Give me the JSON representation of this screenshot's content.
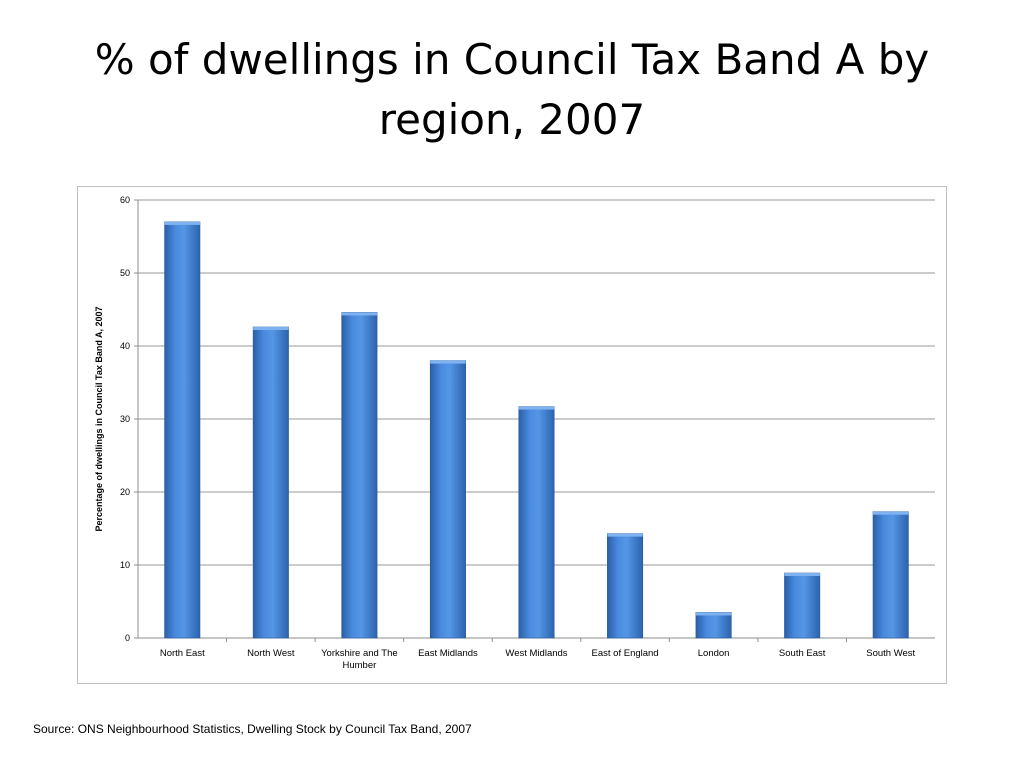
{
  "title": "% of dwellings in Council Tax Band A by region, 2007",
  "source": "Source: ONS Neighbourhood Statistics, Dwelling Stock by Council Tax Band, 2007",
  "chart_data": {
    "type": "bar",
    "categories": [
      "North East",
      "North West",
      "Yorkshire and The Humber",
      "East Midlands",
      "West Midlands",
      "East of England",
      "London",
      "South East",
      "South West"
    ],
    "values": [
      57,
      42.6,
      44.6,
      38,
      31.7,
      14.3,
      3.5,
      8.9,
      17.3
    ],
    "xlabel": "",
    "ylabel": "Percentage of dwellings in Council Tax Band A, 2007",
    "ylim": [
      0,
      60
    ],
    "yticks": [
      0,
      10,
      20,
      30,
      40,
      50,
      60
    ],
    "grid": true,
    "legend": "none",
    "bar_color": "#3a78c8"
  }
}
